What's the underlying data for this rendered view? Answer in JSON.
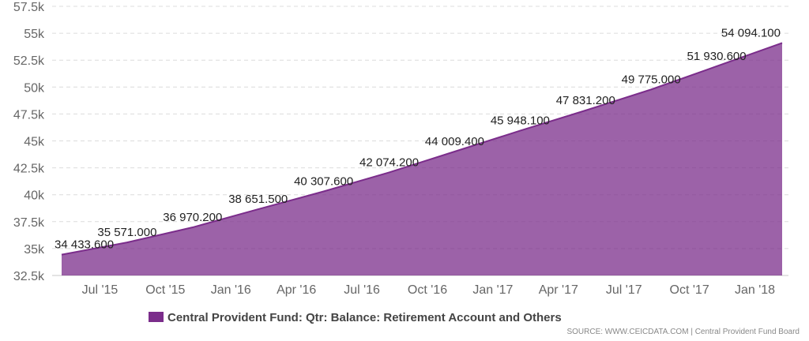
{
  "chart_data": {
    "type": "area",
    "x": [
      "Jun '15",
      "Sep '15",
      "Dec '15",
      "Mar '16",
      "Jun '16",
      "Sep '16",
      "Dec '16",
      "Mar '17",
      "Jun '17",
      "Sep '17",
      "Dec '17",
      "Mar '18"
    ],
    "series": [
      {
        "name": "Central Provident Fund: Qtr: Balance: Retirement Account and Others",
        "color": "#7b2d8b",
        "values": [
          34433.6,
          35571.0,
          36970.2,
          38651.5,
          40307.6,
          42074.2,
          44009.4,
          45948.1,
          47831.2,
          49775.0,
          51930.6,
          54094.1
        ],
        "labels": [
          "34 433.600",
          "35 571.000",
          "36 970.200",
          "38 651.500",
          "40 307.600",
          "42 074.200",
          "44 009.400",
          "45 948.100",
          "47 831.200",
          "49 775.000",
          "51 930.600",
          "54 094.100"
        ]
      }
    ],
    "x_tick_labels": [
      "Jul '15",
      "Oct '15",
      "Jan '16",
      "Apr '16",
      "Jul '16",
      "Oct '16",
      "Jan '17",
      "Apr '17",
      "Jul '17",
      "Oct '17",
      "Jan '18"
    ],
    "y_tick_values": [
      32500,
      35000,
      37500,
      40000,
      42500,
      45000,
      47500,
      50000,
      52500,
      55000,
      57500
    ],
    "y_tick_labels": [
      "32.5k",
      "35k",
      "37.5k",
      "40k",
      "42.5k",
      "45k",
      "47.5k",
      "50k",
      "52.5k",
      "55k",
      "57.5k"
    ],
    "ylim": [
      32500,
      57500
    ],
    "grid": true,
    "legend_position": "bottom-center",
    "title": "",
    "xlabel": "",
    "ylabel": ""
  },
  "legend": {
    "label": "Central Provident Fund: Qtr: Balance: Retirement Account and Others",
    "color": "#7b2d8b"
  },
  "source": "SOURCE: WWW.CEICDATA.COM | Central Provident Fund Board"
}
